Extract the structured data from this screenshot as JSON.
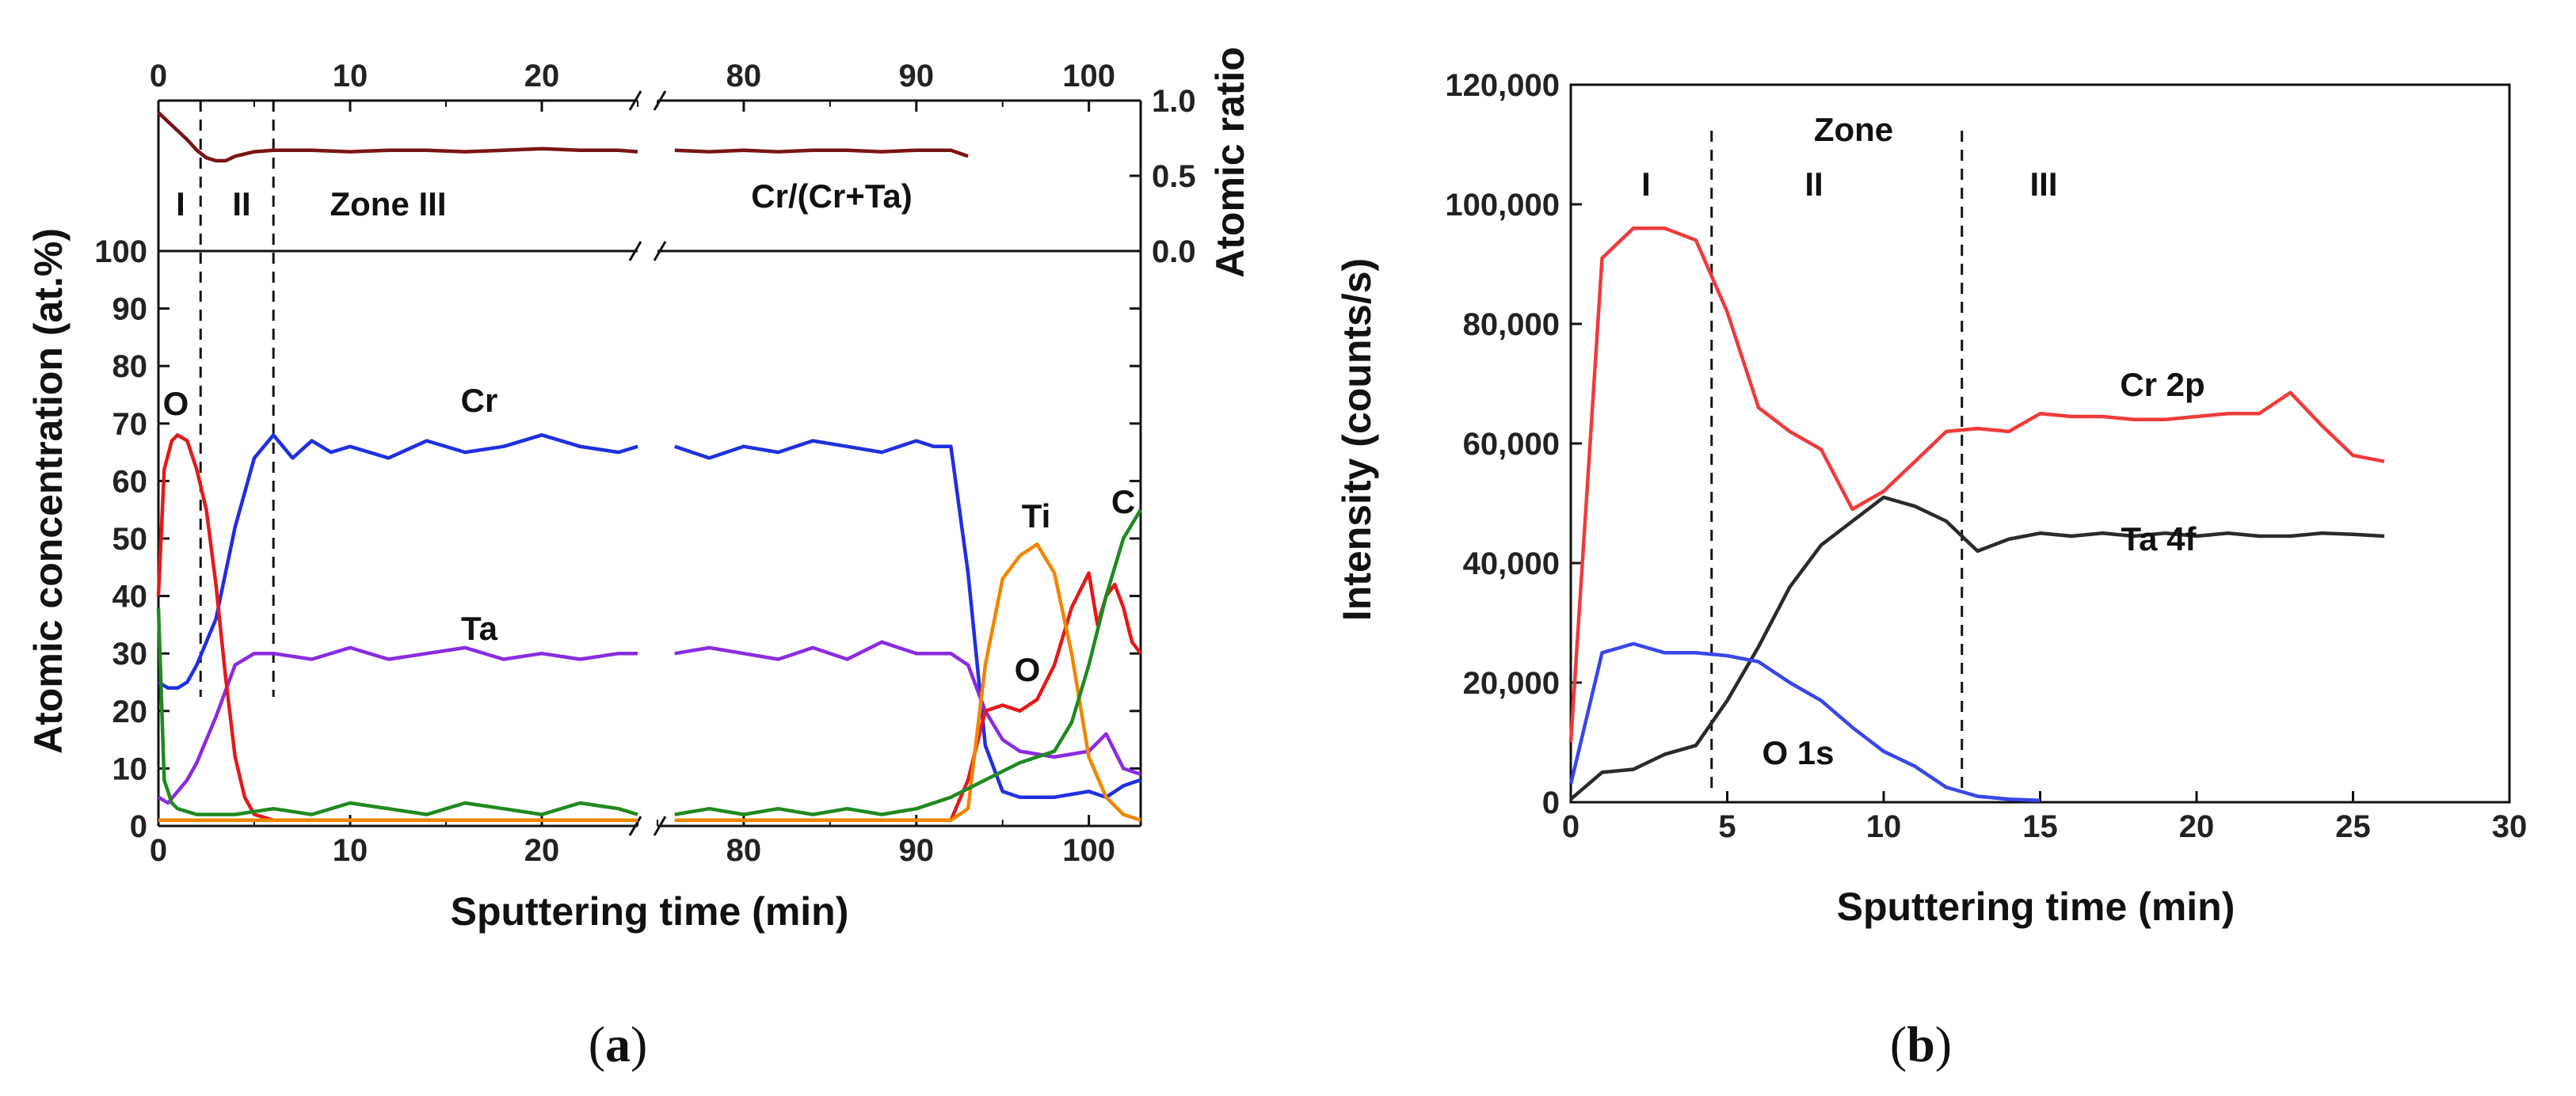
{
  "chart_data": [
    {
      "panel": "a",
      "panel_label": {
        "open": "(",
        "letter": "a",
        "close": ")"
      },
      "type": "line",
      "broken_axis": {
        "left_range": [
          0,
          25
        ],
        "right_range": [
          75,
          103
        ]
      },
      "xlabel": "Sputtering time (min)",
      "x_ticks": [
        0,
        10,
        20,
        80,
        90,
        100
      ],
      "top_x_ticks": [
        0,
        10,
        20,
        80,
        90,
        100
      ],
      "top_panel": {
        "ylabel": "Atomic ratio",
        "ylim": [
          0,
          1
        ],
        "y_ticks": [
          "0.0",
          "0.5",
          "1.0"
        ],
        "series": [
          {
            "name": "Cr/(Cr+Ta)",
            "color": "#7a1414",
            "x": [
              0,
              0.5,
              1,
              1.5,
              2,
              2.5,
              3,
              3.5,
              4,
              5,
              6,
              8,
              10,
              12,
              14,
              16,
              18,
              20,
              22,
              24,
              25,
              76,
              78,
              80,
              82,
              84,
              86,
              88,
              90,
              92,
              93
            ],
            "y": [
              0.92,
              0.86,
              0.8,
              0.74,
              0.67,
              0.62,
              0.6,
              0.6,
              0.63,
              0.66,
              0.67,
              0.67,
              0.66,
              0.67,
              0.67,
              0.66,
              0.67,
              0.68,
              0.67,
              0.67,
              0.66,
              0.67,
              0.66,
              0.67,
              0.66,
              0.67,
              0.67,
              0.66,
              0.67,
              0.67,
              0.63
            ]
          }
        ],
        "annotations": [
          "I",
          "II",
          "Zone III",
          "Cr/(Cr+Ta)"
        ]
      },
      "main_panel": {
        "ylabel": "Atomic concentration (at.%)",
        "ylim": [
          0,
          100
        ],
        "y_ticks": [
          0,
          10,
          20,
          30,
          40,
          50,
          60,
          70,
          80,
          90,
          100
        ],
        "zone_boundaries_x": [
          2.2,
          6
        ],
        "series": [
          {
            "name": "Cr",
            "color": "#1f2fe0",
            "x": [
              0,
              0.5,
              1,
              1.5,
              2,
              3,
              4,
              5,
              6,
              7,
              8,
              9,
              10,
              12,
              14,
              16,
              18,
              20,
              22,
              24,
              25,
              76,
              78,
              80,
              82,
              84,
              86,
              88,
              90,
              91,
              92,
              93,
              94,
              95,
              96,
              98,
              100,
              101,
              102,
              103
            ],
            "y": [
              25,
              24,
              24,
              25,
              28,
              36,
              52,
              64,
              68,
              64,
              67,
              65,
              66,
              64,
              67,
              65,
              66,
              68,
              66,
              65,
              66,
              66,
              64,
              66,
              65,
              67,
              66,
              65,
              67,
              66,
              66,
              44,
              14,
              6,
              5,
              5,
              6,
              5,
              7,
              8
            ]
          },
          {
            "name": "Ta",
            "color": "#8a2be2",
            "x": [
              0,
              0.5,
              1,
              1.5,
              2,
              3,
              4,
              5,
              6,
              8,
              10,
              12,
              14,
              16,
              18,
              20,
              22,
              24,
              25,
              76,
              78,
              80,
              82,
              84,
              86,
              88,
              90,
              92,
              93,
              94,
              95,
              96,
              98,
              100,
              101,
              102,
              103
            ],
            "y": [
              5,
              4,
              6,
              8,
              11,
              19,
              28,
              30,
              30,
              29,
              31,
              29,
              30,
              31,
              29,
              30,
              29,
              30,
              30,
              30,
              31,
              30,
              29,
              31,
              29,
              32,
              30,
              30,
              28,
              20,
              15,
              13,
              12,
              13,
              16,
              10,
              9
            ]
          },
          {
            "name": "O",
            "color": "#e51919",
            "x": [
              0,
              0.3,
              0.7,
              1,
              1.5,
              2,
              2.5,
              3,
              3.5,
              4,
              4.5,
              5,
              6,
              8,
              10,
              15,
              20,
              25,
              76,
              80,
              85,
              90,
              92,
              93,
              94,
              95,
              96,
              97,
              98,
              99,
              100,
              100.5,
              101,
              101.5,
              102,
              102.5,
              103
            ],
            "y": [
              40,
              62,
              67,
              68,
              67,
              62,
              55,
              42,
              26,
              12,
              5,
              2,
              1,
              1,
              1,
              1,
              1,
              1,
              1,
              1,
              1,
              1,
              1,
              8,
              20,
              21,
              20,
              22,
              28,
              38,
              44,
              35,
              40,
              42,
              38,
              32,
              30
            ]
          },
          {
            "name": "Ti",
            "color": "#f28500",
            "x": [
              0,
              5,
              10,
              20,
              25,
              76,
              85,
              92,
              93,
              94,
              95,
              96,
              97,
              98,
              99,
              100,
              101,
              102,
              103
            ],
            "y": [
              1,
              1,
              1,
              1,
              1,
              1,
              1,
              1,
              3,
              28,
              43,
              47,
              49,
              44,
              30,
              12,
              5,
              2,
              1
            ]
          },
          {
            "name": "C",
            "color": "#1f8a1f",
            "x": [
              0,
              0.3,
              0.7,
              1,
              2,
              3,
              4,
              6,
              8,
              10,
              12,
              14,
              16,
              18,
              20,
              22,
              24,
              25,
              76,
              78,
              80,
              82,
              84,
              86,
              88,
              90,
              92,
              94,
              96,
              98,
              99,
              100,
              101,
              102,
              103
            ],
            "y": [
              38,
              8,
              4,
              3,
              2,
              2,
              2,
              3,
              2,
              4,
              3,
              2,
              4,
              3,
              2,
              4,
              3,
              2,
              2,
              3,
              2,
              3,
              2,
              3,
              2,
              3,
              5,
              8,
              11,
              13,
              18,
              28,
              40,
              50,
              55
            ]
          }
        ],
        "labels": [
          "O",
          "Cr",
          "Ta",
          "Ti",
          "O",
          "C"
        ]
      }
    },
    {
      "panel": "b",
      "panel_label": {
        "open": "(",
        "letter": "b",
        "close": ")"
      },
      "type": "line",
      "xlabel": "Sputtering time (min)",
      "ylabel": "Intensity (counts/s)",
      "xlim": [
        0,
        30
      ],
      "ylim": [
        0,
        120000
      ],
      "x_ticks": [
        0,
        5,
        10,
        15,
        20,
        25,
        30
      ],
      "y_ticks": [
        "0",
        "20,000",
        "40,000",
        "60,000",
        "80,000",
        "100,000",
        "120,000"
      ],
      "zone_boundaries_x": [
        4.5,
        12.5
      ],
      "zone_labels": [
        "Zone",
        "I",
        "II",
        "III"
      ],
      "series": [
        {
          "name": "Cr 2p",
          "color": "#ef3b3b",
          "x": [
            0,
            1,
            2,
            3,
            4,
            5,
            6,
            7,
            8,
            9,
            10,
            11,
            12,
            13,
            14,
            15,
            16,
            17,
            18,
            19,
            20,
            21,
            22,
            23,
            24,
            25,
            26
          ],
          "y": [
            10000,
            91000,
            96000,
            96000,
            94000,
            82000,
            66000,
            62000,
            59000,
            49000,
            52000,
            57000,
            62000,
            62500,
            62000,
            65000,
            64500,
            64500,
            64000,
            64000,
            64500,
            65000,
            65000,
            68500,
            63000,
            58000,
            57000
          ]
        },
        {
          "name": "Ta 4f",
          "color": "#2a2a2a",
          "x": [
            0,
            1,
            2,
            3,
            4,
            5,
            6,
            7,
            8,
            9,
            10,
            11,
            12,
            13,
            14,
            15,
            16,
            17,
            18,
            19,
            20,
            21,
            22,
            23,
            24,
            25,
            26
          ],
          "y": [
            500,
            5000,
            5500,
            8000,
            9500,
            17000,
            26000,
            36000,
            43000,
            47000,
            51000,
            49500,
            47000,
            42000,
            44000,
            45000,
            44500,
            45000,
            44500,
            45000,
            44500,
            45000,
            44500,
            44500,
            45000,
            44800,
            44500
          ]
        },
        {
          "name": "O 1s",
          "color": "#3a46e8",
          "x": [
            0,
            1,
            2,
            3,
            4,
            5,
            6,
            7,
            8,
            9,
            10,
            11,
            12,
            13,
            14,
            15
          ],
          "y": [
            3000,
            25000,
            26500,
            25000,
            25000,
            24500,
            23500,
            20000,
            17000,
            12500,
            8500,
            6000,
            2500,
            1000,
            500,
            300
          ]
        }
      ]
    }
  ]
}
